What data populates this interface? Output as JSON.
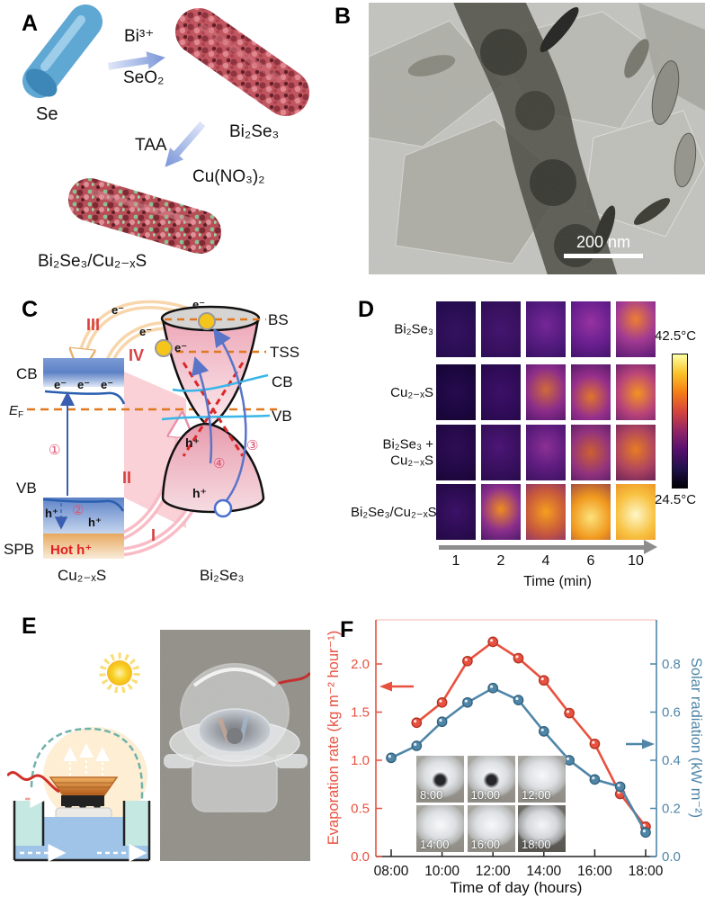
{
  "panels": {
    "a": "A",
    "b": "B",
    "c": "C",
    "d": "D",
    "e": "E",
    "f": "F"
  },
  "panel_a": {
    "se": "Se",
    "step1_reagent_top": "Bi³⁺",
    "step1_reagent_bottom": "SeO₂",
    "bi2se3": "Bi₂Se₃",
    "step2_reagent_left": "TAA",
    "step2_reagent_right": "Cu(NO₃)₂",
    "product": "Bi₂Se₃/Cu₂₋ₓS"
  },
  "panel_b": {
    "scale_bar": "200 nm"
  },
  "panel_c": {
    "cb_left": "CB",
    "ef_main": "E",
    "ef_sub": "F",
    "vb_left": "VB",
    "spb": "SPB",
    "hot_holes": "Hot h⁺",
    "material_left": "Cu₂₋ₓS",
    "material_right": "Bi₂Se₃",
    "bs": "BS",
    "tss": "TSS",
    "cb_right": "CB",
    "vb_right": "VB",
    "e1": "e⁻",
    "e2": "e⁻",
    "e3": "e⁻",
    "e4": "e⁻",
    "e5": "e⁻",
    "e6": "e⁻",
    "e7": "e⁻",
    "h1": "h⁺",
    "h2": "h⁺",
    "h3": "h⁺",
    "h4": "h⁺",
    "roman_i": "I",
    "roman_ii": "II",
    "roman_iii": "III",
    "roman_iv": "IV",
    "circ1": "①",
    "circ2": "②",
    "circ3": "③",
    "circ4": "④"
  },
  "panel_d": {
    "rows": [
      {
        "label": "Bi₂Se₃",
        "cells": [
          {
            "core": "#34125e",
            "mid": "#2a0e54",
            "edge": "#1c0944",
            "pos": "50% 55%"
          },
          {
            "core": "#44156f",
            "mid": "#38115f",
            "edge": "#250b50",
            "pos": "50% 50%"
          },
          {
            "core": "#752797",
            "mid": "#541b7e",
            "edge": "#2f0e5c",
            "pos": "50% 42%"
          },
          {
            "core": "#9633a0",
            "mid": "#6b2090",
            "edge": "#3a1062",
            "pos": "50% 38%"
          },
          {
            "core": "#ee7e32",
            "mid": "#a33b92",
            "edge": "#531670",
            "pos": "50% 32%"
          }
        ]
      },
      {
        "label": "Cu₂₋ₓS",
        "cells": [
          {
            "core": "#260b4e",
            "mid": "#1c0740",
            "edge": "#0f0326",
            "pos": "50% 50%"
          },
          {
            "core": "#3c1068",
            "mid": "#300c58",
            "edge": "#1d0740",
            "pos": "50% 50%"
          },
          {
            "core": "#d06a3a",
            "mid": "#8c2d8a",
            "edge": "#3c1060",
            "pos": "50% 45%"
          },
          {
            "core": "#e0742c",
            "mid": "#962f8c",
            "edge": "#40125e",
            "pos": "50% 58%"
          },
          {
            "core": "#f59322",
            "mid": "#b8437a",
            "edge": "#4c1468",
            "pos": "55% 52%"
          }
        ]
      },
      {
        "label": "Bi₂Se₃ + Cu₂₋ₓS",
        "cells": [
          {
            "core": "#2e0d54",
            "mid": "#240948",
            "edge": "#150530",
            "pos": "50% 40%"
          },
          {
            "core": "#4c1676",
            "mid": "#3a1060",
            "edge": "#240a48",
            "pos": "45% 40%"
          },
          {
            "core": "#8c3094",
            "mid": "#5e1c7e",
            "edge": "#331058",
            "pos": "50% 40%"
          },
          {
            "core": "#cc6030",
            "mid": "#93337e",
            "edge": "#3c1158",
            "pos": "50% 50%"
          },
          {
            "core": "#e87c24",
            "mid": "#ae4460",
            "edge": "#4a1450",
            "pos": "50% 45%"
          }
        ]
      },
      {
        "label": "Bi₂Se₃/Cu₂₋ₓS",
        "cells": [
          {
            "core": "#3c1268",
            "mid": "#2c0c52",
            "edge": "#1a0738",
            "pos": "50% 50%"
          },
          {
            "core": "#f08c20",
            "mid": "#8c2f8c",
            "edge": "#301058",
            "pos": "50% 45%"
          },
          {
            "core": "#f59e1e",
            "mid": "#c85a3c",
            "edge": "#6e2080",
            "pos": "50% 50%"
          },
          {
            "core": "#fce37a",
            "mid": "#f0981e",
            "edge": "#8c3a4c",
            "pos": "50% 60%"
          },
          {
            "core": "#fdf7c8",
            "mid": "#f8c140",
            "edge": "#e8821c",
            "pos": "50% 55%"
          }
        ]
      }
    ],
    "time_ticks": [
      "1",
      "2",
      "4",
      "6",
      "10"
    ],
    "xlabel": "Time (min)",
    "colorbar": {
      "max": "42.5°C",
      "min": "24.5°C",
      "stops": [
        "#fcffa4",
        "#fac228",
        "#f57d15",
        "#d5443d",
        "#932667",
        "#57106e",
        "#20114b",
        "#000004"
      ]
    }
  },
  "chart_data": {
    "type": "line",
    "xlabel": "Time of day (hours)",
    "x_tick_hours": [
      8,
      10,
      12,
      14,
      16,
      18
    ],
    "x_tick_labels": [
      "08:00",
      "10:00",
      "12:00",
      "14:00",
      "16:00",
      "18:00"
    ],
    "x_range": [
      7.4,
      18.4
    ],
    "left_axis": {
      "label": "Evaporation rate (kg m⁻² hour⁻¹)",
      "color": "#e8513f",
      "ticks": [
        0,
        0.5,
        1,
        1.5,
        2
      ],
      "tick_labels": [
        "0.0",
        "0.5",
        "1.0",
        "1.5",
        "2.0"
      ],
      "range": [
        0,
        2.46
      ]
    },
    "right_axis": {
      "label": "Solar radiation (kW m⁻²)",
      "color": "#4f86a8",
      "ticks": [
        0,
        0.2,
        0.4,
        0.6,
        0.8
      ],
      "tick_labels": [
        "0.0",
        "0.2",
        "0.4",
        "0.6",
        "0.8"
      ],
      "range": [
        0,
        0.98
      ]
    },
    "series": [
      {
        "name": "Evaporation rate",
        "axis": "left",
        "color": "#e8513f",
        "edge": "#b03322",
        "x": [
          9,
          10,
          11,
          12,
          13,
          14,
          15,
          16,
          17,
          18
        ],
        "y": [
          1.39,
          1.6,
          2.03,
          2.23,
          2.06,
          1.83,
          1.49,
          1.17,
          0.65,
          0.31
        ]
      },
      {
        "name": "Solar radiation",
        "axis": "right",
        "color": "#4f86a8",
        "edge": "#32617e",
        "x": [
          8,
          9,
          10,
          11,
          12,
          13,
          14,
          15,
          16,
          17,
          18
        ],
        "y": [
          0.41,
          0.46,
          0.56,
          0.64,
          0.7,
          0.65,
          0.52,
          0.4,
          0.32,
          0.29,
          0.1
        ]
      }
    ],
    "inset": [
      {
        "label": "8:00",
        "dark_center": true,
        "dim": false
      },
      {
        "label": "10:00",
        "dark_center": true,
        "dim": false
      },
      {
        "label": "12:00",
        "dark_center": false,
        "dim": false
      },
      {
        "label": "14:00",
        "dark_center": false,
        "dim": false
      },
      {
        "label": "16:00",
        "dark_center": false,
        "dim": false
      },
      {
        "label": "18:00",
        "dark_center": false,
        "dim": true
      }
    ]
  }
}
